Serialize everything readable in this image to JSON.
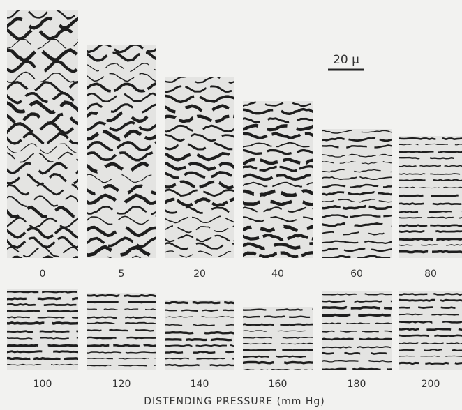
{
  "scale_bar": {
    "label": "20 μ"
  },
  "rows": [
    {
      "panels": [
        "0",
        "5",
        "20",
        "40",
        "60",
        "80"
      ]
    },
    {
      "panels": [
        "100",
        "120",
        "140",
        "160",
        "180",
        "200"
      ]
    }
  ],
  "caption": "DISTENDING PRESSURE (mm Hg)"
}
